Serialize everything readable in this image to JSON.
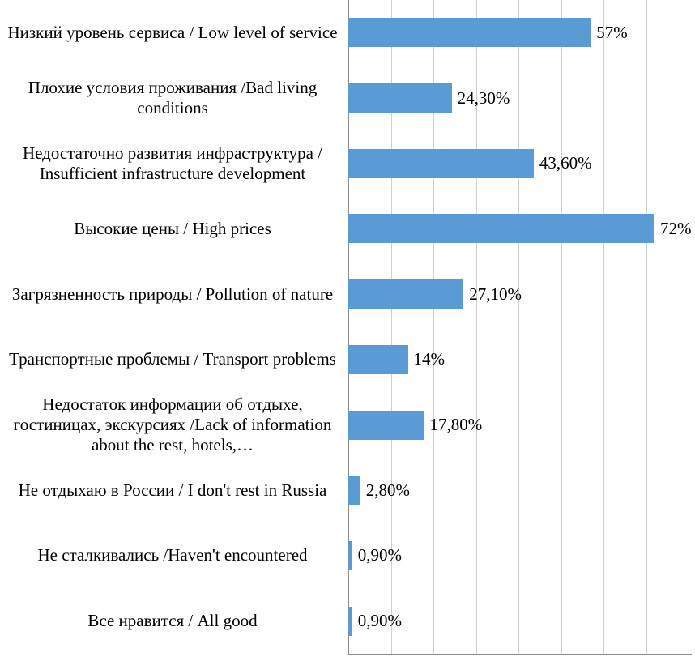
{
  "chart_data": {
    "type": "bar",
    "orientation": "horizontal",
    "title": "",
    "xlabel": "",
    "ylabel": "",
    "categories": [
      "Низкий уровень сервиса / Low level of service",
      "Плохие условия проживания /Bad living conditions",
      "Недостаточно развития инфраструктура / Insufficient infrastructure development",
      "Высокие цены / High prices",
      "Загрязненность природы / Pollution of nature",
      "Транспортные проблемы / Transport problems",
      "Недостаток информации об отдыхе, гостиницах, экскурсиях /Lack of information about the rest, hotels,…",
      "Не отдыхаю в России / I don't rest in Russia",
      "Не сталкивались /Haven't encountered",
      "Все нравится / All good"
    ],
    "values": [
      57,
      24.3,
      43.6,
      72,
      27.1,
      14,
      17.8,
      2.8,
      0.9,
      0.9
    ],
    "value_labels": [
      "57%",
      "24,30%",
      "43,60%",
      "72%",
      "27,10%",
      "14%",
      "17,80%",
      "2,80%",
      "0,90%",
      "0,90%"
    ],
    "xlim": [
      0,
      80
    ],
    "gridline_step": 10,
    "grid": true,
    "legend": "none",
    "bar_color": "#5b9bd5"
  }
}
